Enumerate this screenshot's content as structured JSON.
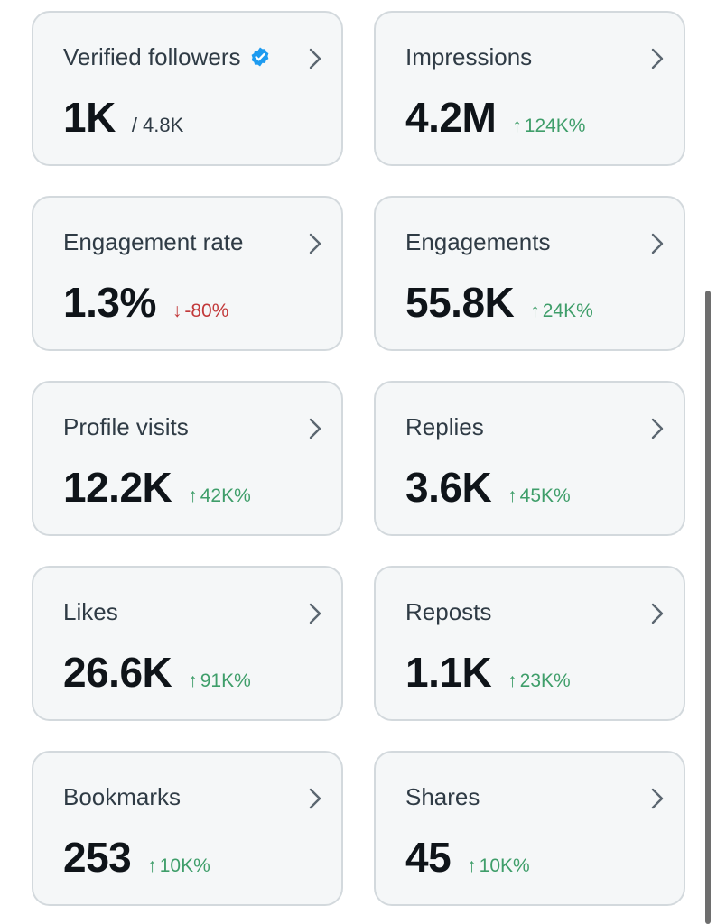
{
  "colors": {
    "card_bg": "#f5f7f8",
    "card_border": "#d3d9dd",
    "positive": "#3f9e6a",
    "negative": "#c2393a",
    "verified": "#1d9bf0"
  },
  "cards": [
    {
      "label": "Verified followers",
      "value": "1K",
      "total": "/ 4.8K",
      "icon": "verified-badge-icon"
    },
    {
      "label": "Impressions",
      "value": "4.2M",
      "trend": "124K%",
      "direction": "up",
      "arrow": "↑"
    },
    {
      "label": "Engagement rate",
      "value": "1.3%",
      "trend": "-80%",
      "direction": "down",
      "arrow": "↓"
    },
    {
      "label": "Engagements",
      "value": "55.8K",
      "trend": "24K%",
      "direction": "up",
      "arrow": "↑"
    },
    {
      "label": "Profile visits",
      "value": "12.2K",
      "trend": "42K%",
      "direction": "up",
      "arrow": "↑"
    },
    {
      "label": "Replies",
      "value": "3.6K",
      "trend": "45K%",
      "direction": "up",
      "arrow": "↑"
    },
    {
      "label": "Likes",
      "value": "26.6K",
      "trend": "91K%",
      "direction": "up",
      "arrow": "↑"
    },
    {
      "label": "Reposts",
      "value": "1.1K",
      "trend": "23K%",
      "direction": "up",
      "arrow": "↑"
    },
    {
      "label": "Bookmarks",
      "value": "253",
      "trend": "10K%",
      "direction": "up",
      "arrow": "↑"
    },
    {
      "label": "Shares",
      "value": "45",
      "trend": "10K%",
      "direction": "up",
      "arrow": "↑"
    }
  ]
}
